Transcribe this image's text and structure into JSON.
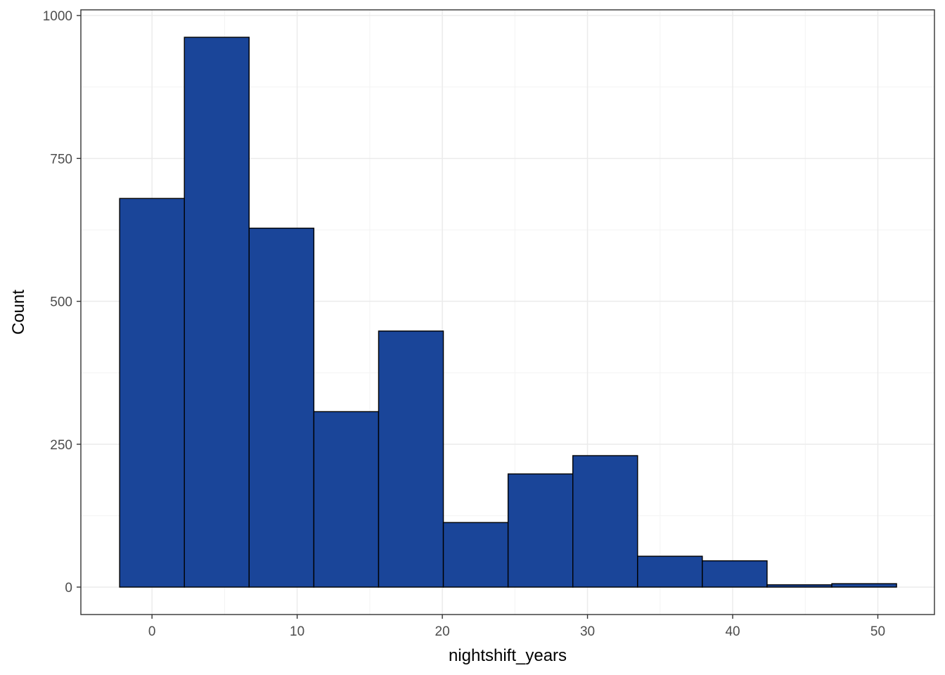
{
  "chart_data": {
    "type": "bar",
    "subtype": "histogram",
    "xlabel": "nightshift_years",
    "ylabel": "Count",
    "bin_width": 4.46,
    "bins": [
      {
        "x_start": -2.23,
        "x_end": 2.23,
        "count": 680
      },
      {
        "x_start": 2.23,
        "x_end": 6.69,
        "count": 962
      },
      {
        "x_start": 6.69,
        "x_end": 11.15,
        "count": 628
      },
      {
        "x_start": 11.15,
        "x_end": 15.61,
        "count": 307
      },
      {
        "x_start": 15.61,
        "x_end": 20.07,
        "count": 448
      },
      {
        "x_start": 20.07,
        "x_end": 24.53,
        "count": 113
      },
      {
        "x_start": 24.53,
        "x_end": 28.99,
        "count": 198
      },
      {
        "x_start": 28.99,
        "x_end": 33.45,
        "count": 230
      },
      {
        "x_start": 33.45,
        "x_end": 37.91,
        "count": 54
      },
      {
        "x_start": 37.91,
        "x_end": 42.37,
        "count": 46
      },
      {
        "x_start": 42.37,
        "x_end": 46.83,
        "count": 4
      },
      {
        "x_start": 46.83,
        "x_end": 51.29,
        "count": 6
      }
    ],
    "xlim": [
      -4.9,
      53.9
    ],
    "ylim": [
      -48,
      1010
    ],
    "x_ticks": [
      0,
      10,
      20,
      30,
      40,
      50
    ],
    "y_ticks": [
      0,
      250,
      500,
      750,
      1000
    ],
    "x_minor_ticks": [
      5,
      15,
      25,
      35,
      45
    ],
    "y_minor_ticks": [
      125,
      375,
      625,
      875
    ],
    "grid": true,
    "legend": "none",
    "colors": {
      "bar_fill": "#1a4599",
      "bar_outline": "#000000",
      "grid_major": "#ebebeb",
      "grid_minor": "#f3f3f3",
      "panel_border": "#333333",
      "tick_text": "#4d4d4d"
    }
  }
}
